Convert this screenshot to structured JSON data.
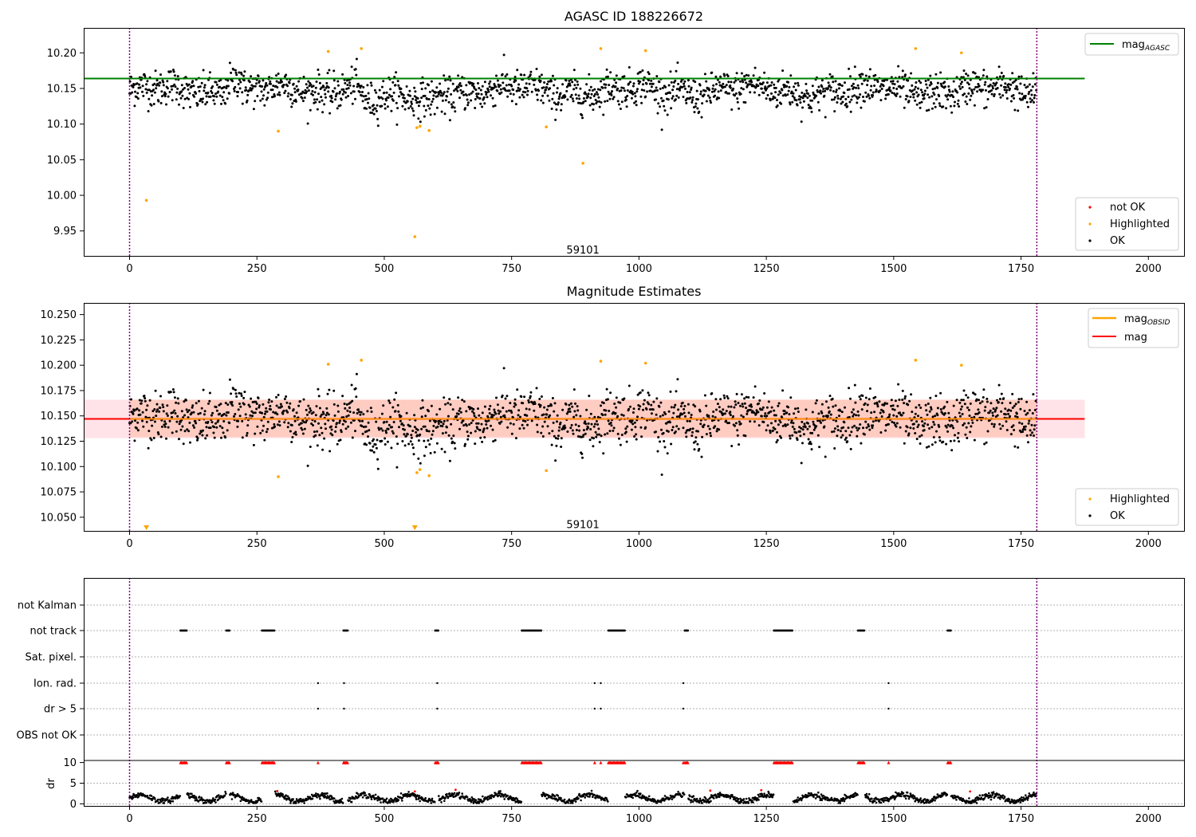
{
  "chart_data": [
    {
      "type": "scatter",
      "title": "AGASC ID 188226672",
      "xlim": [
        -90,
        2070
      ],
      "ylim": [
        9.915,
        10.235
      ],
      "x_ticks": [
        0,
        250,
        500,
        750,
        1000,
        1250,
        1500,
        1750,
        2000
      ],
      "y_ticks": [
        9.95,
        10.0,
        10.05,
        10.1,
        10.15,
        10.2
      ],
      "y_tick_labels": [
        "9.95",
        "10.00",
        "10.05",
        "10.10",
        "10.15",
        "10.20"
      ],
      "annotation": {
        "text": "59101",
        "x": 890,
        "y": 9.925
      },
      "vlines": {
        "x": [
          0,
          1781
        ],
        "color": "#800080",
        "style": "dotted"
      },
      "reference_line": {
        "name": "mag_AGASC",
        "label": "mag",
        "subscript": "AGASC",
        "y": 10.164,
        "x_range": [
          -90,
          1875
        ],
        "color": "#008000"
      },
      "legend_top": {
        "position": "top-right"
      },
      "legend_bottom": {
        "position": "lower-right",
        "entries": [
          {
            "label": "not OK",
            "color": "#ff0000"
          },
          {
            "label": "Highlighted",
            "color": "#ffa500"
          },
          {
            "label": "OK",
            "color": "#000000"
          }
        ]
      },
      "ok_points": {
        "n": 1781,
        "baseline": 10.147,
        "noise_sd": 0.017,
        "color": "#000000",
        "dips": [
          {
            "x_range": [
              450,
              600
            ],
            "offset": -0.013
          }
        ],
        "bumps": [
          {
            "x_range": [
              190,
              220
            ],
            "offset": 0.02
          },
          {
            "x_range": [
              400,
              460
            ],
            "offset": 0.008
          }
        ]
      },
      "highlighted_points": {
        "color": "#ffa500",
        "x": [
          33,
          292,
          390,
          455,
          564,
          570,
          588,
          818,
          890,
          925,
          1013,
          1543,
          1633,
          560
        ],
        "y": [
          9.993,
          10.09,
          10.202,
          10.206,
          10.095,
          10.097,
          10.091,
          10.096,
          10.045,
          10.206,
          10.203,
          10.206,
          10.2,
          9.942
        ]
      }
    },
    {
      "type": "scatter",
      "title": "Magnitude Estimates",
      "xlim": [
        -90,
        2070
      ],
      "ylim": [
        10.0365,
        10.2615
      ],
      "x_ticks": [
        0,
        250,
        500,
        750,
        1000,
        1250,
        1500,
        1750,
        2000
      ],
      "y_ticks": [
        10.05,
        10.075,
        10.1,
        10.125,
        10.15,
        10.175,
        10.2,
        10.225,
        10.25
      ],
      "y_tick_labels": [
        "10.050",
        "10.075",
        "10.100",
        "10.125",
        "10.150",
        "10.175",
        "10.200",
        "10.225",
        "10.250"
      ],
      "annotation": {
        "text": "59101",
        "x": 890,
        "y": 10.044
      },
      "vlines": {
        "x": [
          0,
          1781
        ],
        "color": "#800080",
        "style": "dotted"
      },
      "bands": [
        {
          "x_range": [
            -90,
            1875
          ],
          "y_range": [
            10.128,
            10.166
          ],
          "color": "#ffc0cb",
          "opacity": 0.45
        },
        {
          "x_range": [
            0,
            1781
          ],
          "y_range": [
            10.129,
            10.166
          ],
          "color": "#ffa07a",
          "opacity": 0.35
        }
      ],
      "lines": [
        {
          "name": "mag",
          "label": "mag",
          "y": 10.147,
          "x_range": [
            -90,
            1875
          ],
          "color": "#ff0000"
        },
        {
          "name": "mag_OBSID",
          "label": "mag",
          "subscript": "OBSID",
          "y": 10.147,
          "x_range": [
            0,
            1781
          ],
          "color": "#ffa500"
        }
      ],
      "legend_top": {
        "position": "top-right"
      },
      "legend_bottom": {
        "position": "lower-right",
        "entries": [
          {
            "label": "Highlighted",
            "color": "#ffa500"
          },
          {
            "label": "OK",
            "color": "#000000"
          }
        ]
      },
      "highlighted_points": {
        "color": "#ffa500",
        "x": [
          292,
          390,
          455,
          564,
          570,
          588,
          818,
          925,
          1013,
          1543,
          1633
        ],
        "y": [
          10.09,
          10.201,
          10.205,
          10.094,
          10.097,
          10.091,
          10.096,
          10.204,
          10.202,
          10.205,
          10.2
        ]
      },
      "clipped_markers": {
        "color": "#ffa500",
        "x": [
          33,
          560
        ],
        "y": 10.04
      }
    },
    {
      "type": "scatter",
      "title": "",
      "xlim": [
        -90,
        2070
      ],
      "x_ticks": [
        0,
        250,
        500,
        750,
        1000,
        1250,
        1500,
        1750,
        2000
      ],
      "vlines": {
        "x": [
          0,
          1781
        ],
        "color": "#800080",
        "style": "dotted"
      },
      "flag_rows": [
        "not Kalman",
        "not track",
        "Sat. pixel.",
        "Ion. rad.",
        "dr > 5",
        "OBS not OK"
      ],
      "flags": {
        "not track": [
          [
            100,
            112
          ],
          [
            190,
            196
          ],
          [
            260,
            285
          ],
          [
            420,
            428
          ],
          [
            600,
            606
          ],
          [
            770,
            808
          ],
          [
            940,
            972
          ],
          [
            1090,
            1096
          ],
          [
            1265,
            1302
          ],
          [
            1430,
            1443
          ],
          [
            1606,
            1612
          ]
        ],
        "Ion. rad.": [
          370,
          421,
          604,
          913,
          925,
          1087,
          1490
        ],
        "dr > 5": [
          370,
          421,
          604,
          913,
          925,
          1087,
          1490
        ]
      },
      "dr_axis": {
        "ylabel": "dr",
        "ylim": [
          -0.5,
          10.5
        ],
        "y_ticks": [
          0,
          5,
          10
        ]
      },
      "dr_points": {
        "ok_color": "#000000",
        "bad_color": "#ff0000",
        "typical_range": [
          0.3,
          2.8
        ],
        "red_x": [
          290,
          560,
          640,
          1140,
          1240,
          1650
        ],
        "red_y": [
          3.1,
          3.0,
          3.4,
          3.2,
          3.3,
          3.0
        ]
      },
      "dr_clipped": {
        "color": "#ff0000",
        "y": 10
      }
    }
  ]
}
